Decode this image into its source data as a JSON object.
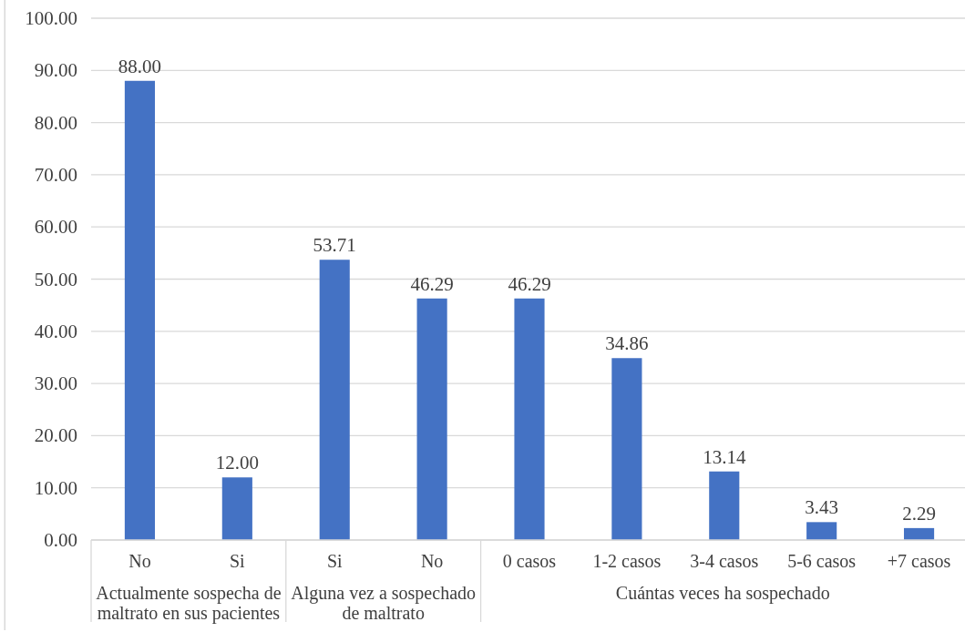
{
  "chart_data": {
    "type": "bar",
    "categories": [
      "No",
      "Si",
      "Si",
      "No",
      "0 casos",
      "1-2 casos",
      "3-4 casos",
      "5-6 casos",
      "+7 casos"
    ],
    "series": [
      {
        "name": "Actualmente sospecha de maltrato en sus pacientes",
        "color": "#4472c4",
        "values": [
          88,
          12,
          null,
          null,
          null,
          null,
          null,
          null,
          null
        ],
        "value_labels": [
          "88.00",
          "12.00",
          null,
          null,
          null,
          null,
          null,
          null,
          null
        ]
      },
      {
        "name": "Alguna vez a sospechado de maltrato",
        "color": "#4472c4",
        "values": [
          null,
          null,
          53.71,
          46.29,
          null,
          null,
          null,
          null,
          null
        ],
        "value_labels": [
          null,
          null,
          "53.71",
          "46.29",
          null,
          null,
          null,
          null,
          null
        ]
      },
      {
        "name": "Cuántas veces ha sospechado",
        "color": "#4472c4",
        "values": [
          null,
          null,
          null,
          null,
          46.29,
          34.86,
          13.14,
          3.43,
          2.29
        ],
        "value_labels": [
          null,
          null,
          null,
          null,
          "46.29",
          "34.86",
          "13.14",
          "3.43",
          "2.29"
        ]
      }
    ],
    "ylim": [
      0,
      100
    ],
    "yticks": [
      {
        "value": 0,
        "label": "0.00"
      },
      {
        "value": 10,
        "label": "10.00"
      },
      {
        "value": 20,
        "label": "20.00"
      },
      {
        "value": 30,
        "label": "30.00"
      },
      {
        "value": 40,
        "label": "40.00"
      },
      {
        "value": 50,
        "label": "50.00"
      },
      {
        "value": 60,
        "label": "60.00"
      },
      {
        "value": 70,
        "label": "70.00"
      },
      {
        "value": 80,
        "label": "80.00"
      },
      {
        "value": 90,
        "label": "90.00"
      },
      {
        "value": 100,
        "label": "100.00"
      }
    ],
    "grid": "y"
  }
}
